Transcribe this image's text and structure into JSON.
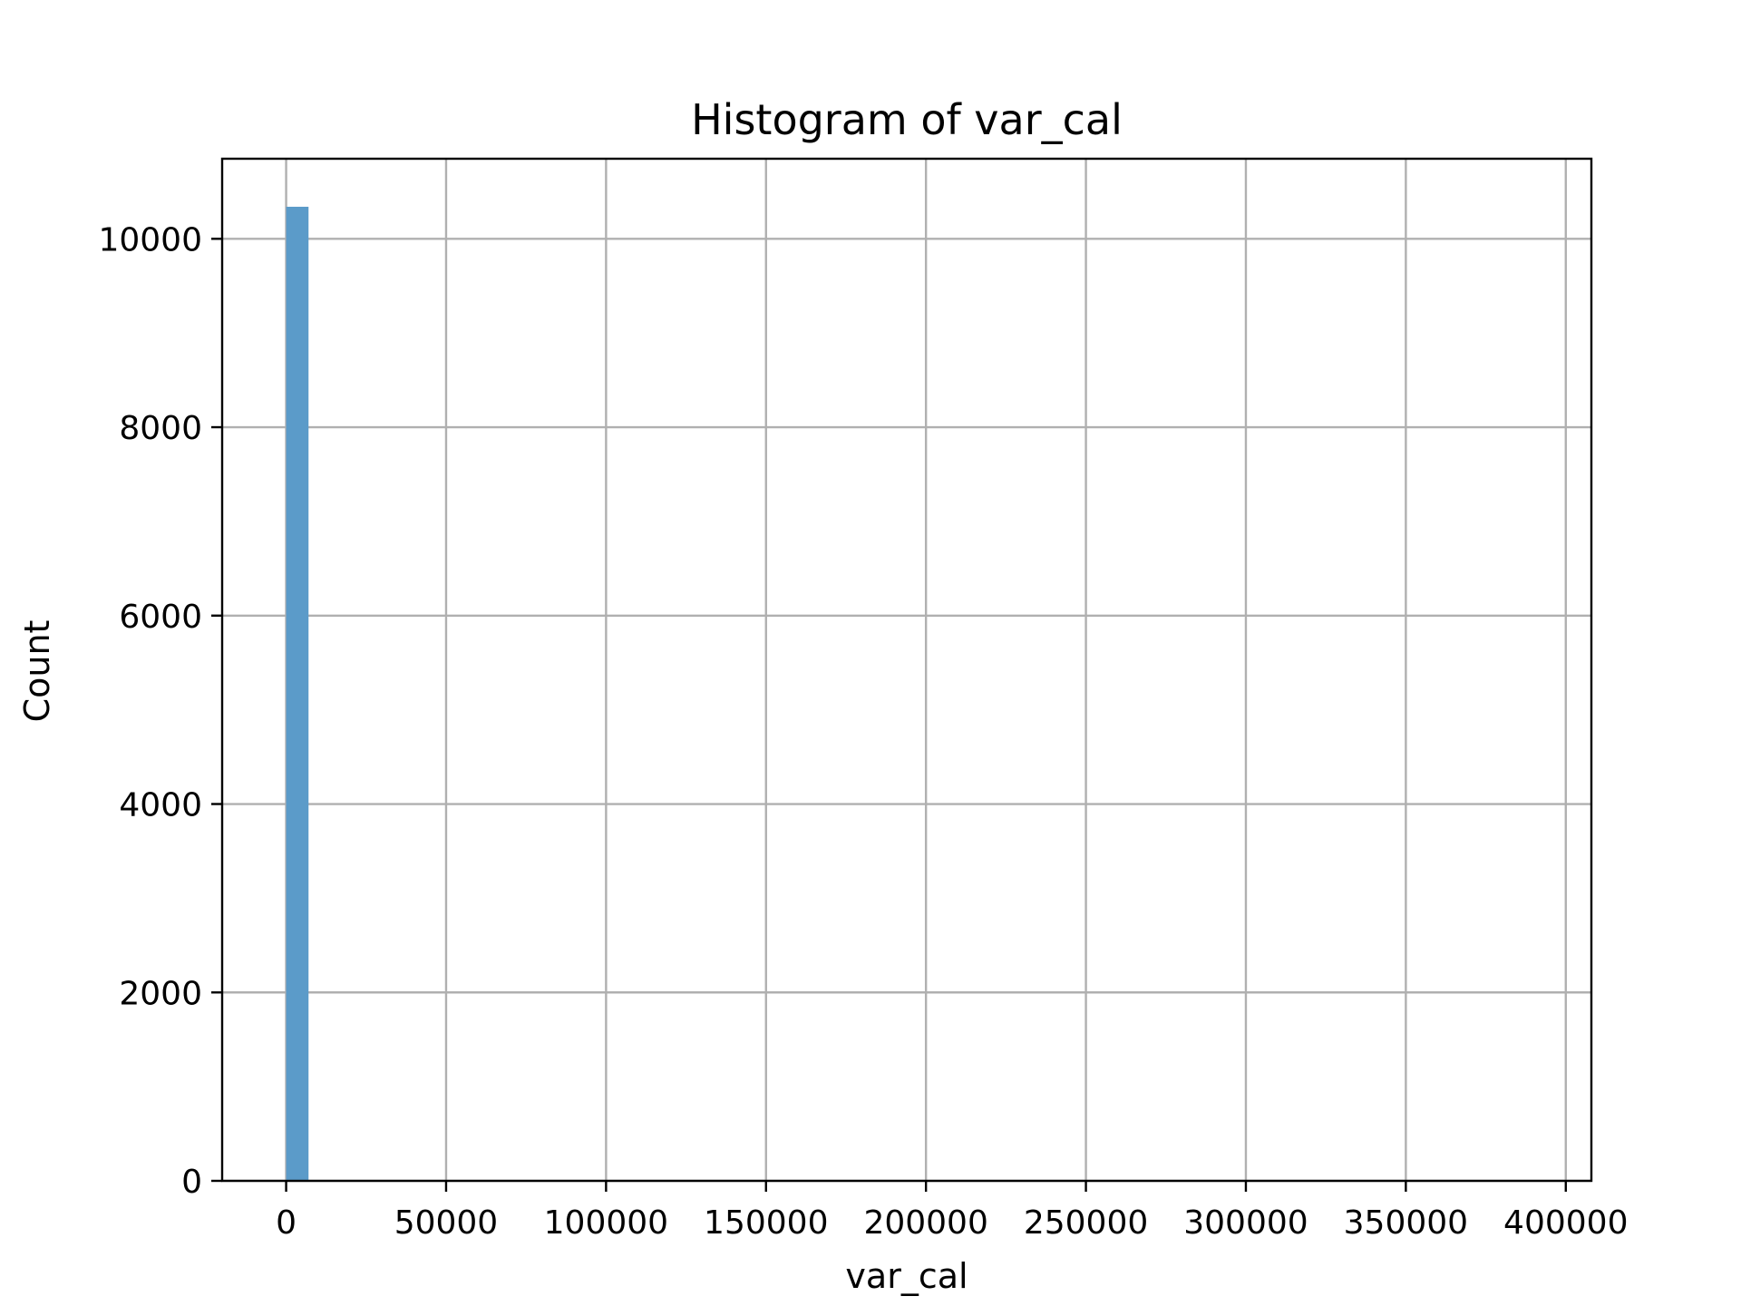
{
  "chart_data": {
    "type": "bar",
    "title": "Histogram of var_cal",
    "xlabel": "var_cal",
    "ylabel": "Count",
    "xlim": [
      -20000,
      408000
    ],
    "ylim": [
      0,
      10850
    ],
    "xticks": [
      0,
      50000,
      100000,
      150000,
      200000,
      250000,
      300000,
      350000,
      400000
    ],
    "yticks": [
      0,
      2000,
      4000,
      6000,
      8000,
      10000
    ],
    "grid": true,
    "bar_color": "#5b9bc9",
    "bins": [
      {
        "x0": 0,
        "x1": 7000,
        "count": 10340
      }
    ]
  }
}
